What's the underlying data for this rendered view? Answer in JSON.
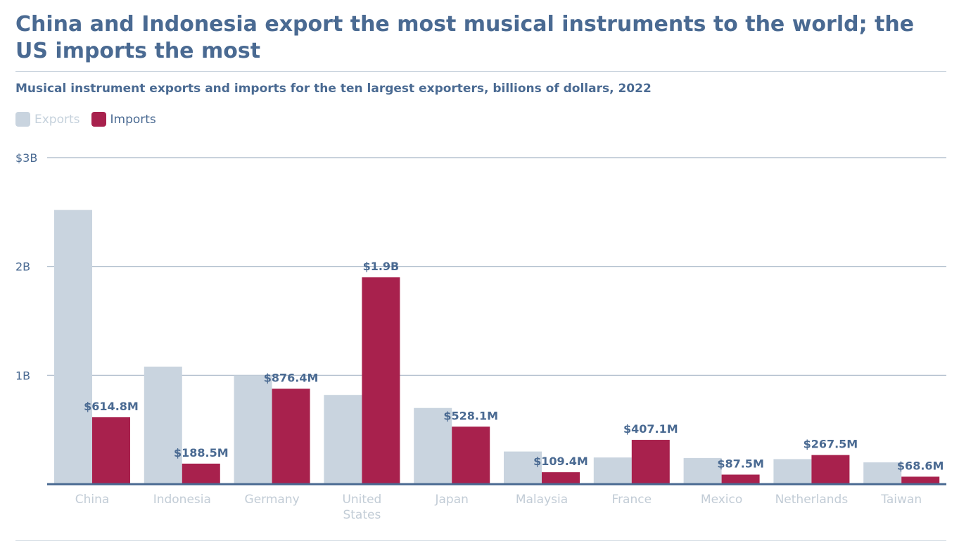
{
  "title": "China and Indonesia export the most musical instruments to the world; the US imports the most",
  "subtitle": "Musical instrument exports and imports for the ten largest exporters, billions of dollars, 2022",
  "colors": {
    "exports": "#c9d4df",
    "imports": "#a8214d",
    "axis": "#4a6a92",
    "grid": "#a9b8c8"
  },
  "chart_data": {
    "type": "bar",
    "title": "China and Indonesia export the most musical instruments to the world; the US imports the most",
    "subtitle": "Musical instrument exports and imports for the ten largest exporters, billions of dollars, 2022",
    "categories": [
      "China",
      "Indonesia",
      "Germany",
      "United States",
      "Japan",
      "Malaysia",
      "France",
      "Mexico",
      "Netherlands",
      "Taiwan"
    ],
    "series": [
      {
        "name": "Exports",
        "values": [
          2.52,
          1.08,
          1.0,
          0.82,
          0.7,
          0.3,
          0.245,
          0.24,
          0.23,
          0.2
        ]
      },
      {
        "name": "Imports",
        "values": [
          0.6148,
          0.1885,
          0.8764,
          1.9,
          0.5281,
          0.1094,
          0.4071,
          0.0875,
          0.2675,
          0.0686
        ]
      }
    ],
    "data_labels": {
      "Imports": [
        "$614.8M",
        "$188.5M",
        "$876.4M",
        "$1.9B",
        "$528.1M",
        "$109.4M",
        "$407.1M",
        "$87.5M",
        "$267.5M",
        "$68.6M"
      ]
    },
    "yticks": [
      {
        "value": 1,
        "label": "1B"
      },
      {
        "value": 2,
        "label": "2B"
      },
      {
        "value": 3,
        "label": "$3B"
      }
    ],
    "ylim": [
      0,
      3
    ],
    "legend_position": "top-left",
    "grid": true
  }
}
